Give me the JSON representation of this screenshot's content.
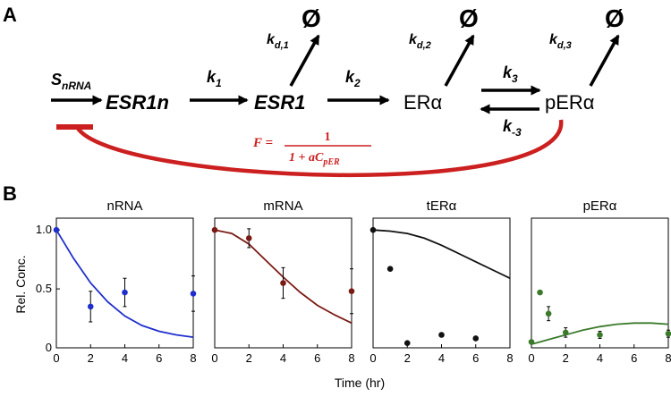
{
  "panel_labels": {
    "a": "A",
    "b": "B"
  },
  "diagram": {
    "species": [
      "ESR1n",
      "ESR1",
      "ERα",
      "pERα"
    ],
    "degradation_symbol": "Ø",
    "rates": {
      "s_main": "S",
      "s_sub": "nRNA",
      "k1_main": "k",
      "k1_sub": "1",
      "k2_main": "k",
      "k2_sub": "2",
      "k3_main": "k",
      "k3_sub": "3",
      "km3_main": "k",
      "km3_sub": "-3",
      "kd1_main": "k",
      "kd1_sub": "d,1",
      "kd2_main": "k",
      "kd2_sub": "d,2",
      "kd3_main": "k",
      "kd3_sub": "d,3"
    },
    "feedback": {
      "lhs": "F = ",
      "numerator": "1",
      "denominator_main": "1 + aC",
      "denominator_sub": "pER"
    },
    "colors": {
      "feedback": "#cc1f1f"
    }
  },
  "ylabel": "Rel. Conc.",
  "xlabel": "Time (hr)",
  "chart_data": [
    {
      "type": "line",
      "title": "nRNA",
      "xlim": [
        0,
        8
      ],
      "ylim": [
        0,
        1.1
      ],
      "xticks": [
        "0",
        "2",
        "4",
        "6",
        "8"
      ],
      "yticks": [
        "0",
        "0.5",
        "1.0"
      ],
      "color": "#1f2fcc",
      "model_x": [
        0,
        1,
        2,
        3,
        4,
        5,
        6,
        7,
        8
      ],
      "model_y": [
        1.0,
        0.76,
        0.55,
        0.39,
        0.27,
        0.19,
        0.14,
        0.11,
        0.09
      ],
      "data_x": [
        0,
        2,
        4,
        8
      ],
      "data_y": [
        1.0,
        0.35,
        0.47,
        0.46
      ],
      "data_err": [
        0,
        0.13,
        0.12,
        0.15
      ]
    },
    {
      "type": "line",
      "title": "mRNA",
      "xlim": [
        0,
        8
      ],
      "ylim": [
        0,
        1.1
      ],
      "xticks": [
        "0",
        "2",
        "4",
        "6",
        "8"
      ],
      "yticks": [],
      "color": "#7a1a14",
      "model_x": [
        0,
        1,
        2,
        3,
        4,
        5,
        6,
        7,
        8
      ],
      "model_y": [
        1.0,
        0.97,
        0.88,
        0.74,
        0.6,
        0.47,
        0.36,
        0.28,
        0.21
      ],
      "data_x": [
        0,
        2,
        4,
        8
      ],
      "data_y": [
        1.0,
        0.93,
        0.55,
        0.48
      ],
      "data_err": [
        0,
        0.08,
        0.13,
        0.19
      ]
    },
    {
      "type": "line",
      "title": "tERα",
      "xlim": [
        0,
        8
      ],
      "ylim": [
        0,
        1.1
      ],
      "xticks": [
        "0",
        "2",
        "4",
        "6",
        "8"
      ],
      "yticks": [],
      "color": "#111111",
      "model_x": [
        0,
        1,
        2,
        3,
        4,
        5,
        6,
        7,
        8
      ],
      "model_y": [
        1.0,
        0.99,
        0.97,
        0.93,
        0.87,
        0.8,
        0.73,
        0.66,
        0.59
      ],
      "data_x": [
        0,
        1,
        2,
        4,
        6
      ],
      "data_y": [
        1.0,
        0.67,
        0.04,
        0.11,
        0.08
      ],
      "data_err": [
        0,
        0,
        0,
        0,
        0
      ]
    },
    {
      "type": "line",
      "title": "pERα",
      "xlim": [
        0,
        8
      ],
      "ylim": [
        0,
        1.1
      ],
      "xticks": [
        "0",
        "2",
        "4",
        "6",
        "8"
      ],
      "yticks": [],
      "color": "#3a7a2a",
      "model_x": [
        0,
        1,
        2,
        3,
        4,
        5,
        6,
        7,
        8
      ],
      "model_y": [
        0.03,
        0.07,
        0.11,
        0.15,
        0.18,
        0.2,
        0.21,
        0.21,
        0.2
      ],
      "data_x": [
        0,
        0.5,
        1,
        2,
        4,
        8
      ],
      "data_y": [
        0.05,
        0.47,
        0.29,
        0.13,
        0.11,
        0.12
      ],
      "data_err": [
        0,
        0,
        0.06,
        0.04,
        0.03,
        0.03
      ]
    }
  ]
}
